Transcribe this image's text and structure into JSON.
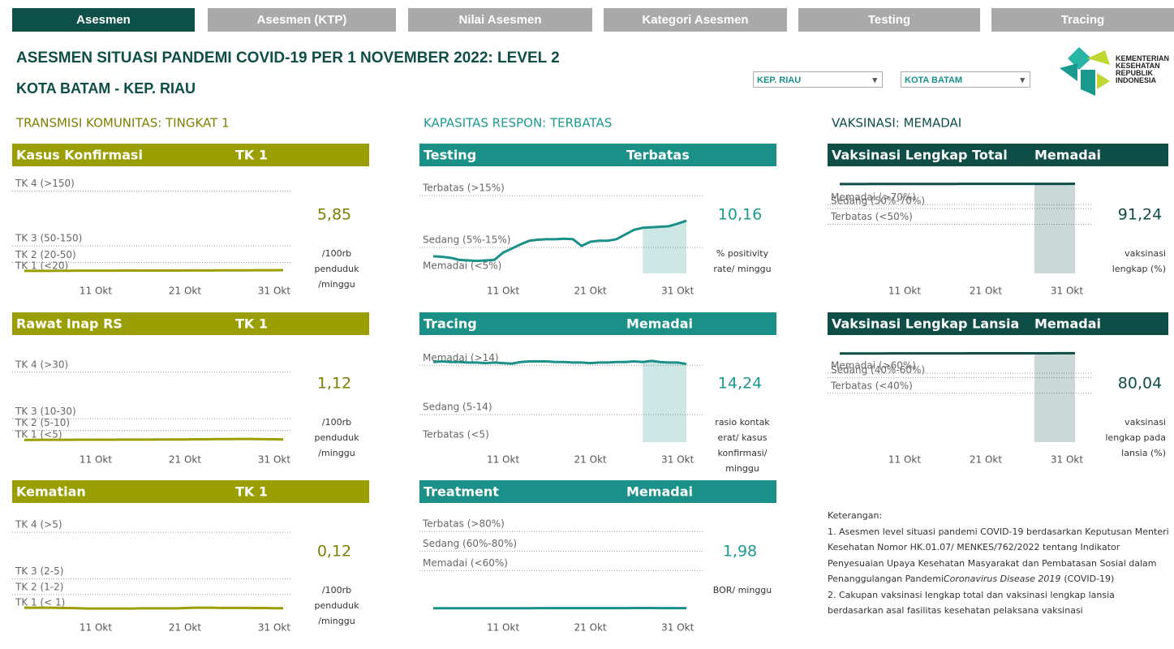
{
  "tabs": [
    "Asesmen",
    "Asesmen (KTP)",
    "Nilai Asesmen",
    "Kategori Asesmen",
    "Testing",
    "Tracing"
  ],
  "title": "ASESMEN SITUASI PANDEMI COVID-19 PER 1 NOVEMBER 2022: LEVEL 2",
  "subtitle": "KOTA BATAM - KEP. RIAU",
  "filters": [
    "KEP. RIAU",
    "KOTA BATAM"
  ],
  "logo": [
    "KEMENTERIAN",
    "KESEHATAN",
    "REPUBLIK",
    "INDONESIA"
  ],
  "sections": [
    {
      "heading": "TRANSMISI KOMUNITAS: TINGKAT 1",
      "color": "#9a9e00",
      "text_color": "#7d7f00",
      "panels": [
        {
          "name": "Kasus Konfirmasi",
          "status": "TK 1",
          "value": "5,85",
          "unit": [
            "/100rb",
            "penduduk",
            "/minggu"
          ],
          "chart": {
            "type": "line",
            "ylim": [
              0,
              170
            ],
            "xlim": [
              0,
              29
            ],
            "thresholds": [
              {
                "value": 150,
                "label": "TK 4 (>150)"
              },
              {
                "value": 50,
                "label": "TK 3 (50-150)"
              },
              {
                "value": 20,
                "label": "TK 2 (20-50)"
              },
              {
                "value": 0,
                "label": "TK 1 (<20)"
              }
            ],
            "xticks": [
              {
                "value": 8,
                "label": "11 Okt"
              },
              {
                "value": 18,
                "label": "21 Okt"
              },
              {
                "value": 28,
                "label": "31 Okt"
              }
            ],
            "values": [
              4.6,
              4.6,
              4.7,
              4.7,
              4.8,
              4.8,
              4.9,
              4.9,
              5.0,
              5.0,
              5.0,
              5.1,
              5.1,
              5.1,
              5.2,
              5.2,
              5.2,
              5.2,
              5.3,
              5.3,
              5.4,
              5.4,
              5.5,
              5.5,
              5.6,
              5.6,
              5.7,
              5.7,
              5.8,
              5.85
            ]
          }
        },
        {
          "name": "Rawat Inap RS",
          "status": "TK 1",
          "value": "1,12",
          "unit": [
            "/100rb",
            "penduduk",
            "/minggu"
          ],
          "chart": {
            "type": "line",
            "ylim": [
              0,
              40
            ],
            "xlim": [
              0,
              29
            ],
            "thresholds": [
              {
                "value": 30,
                "label": "TK 4 (>30)"
              },
              {
                "value": 10,
                "label": "TK 3 (10-30)"
              },
              {
                "value": 5,
                "label": "TK 2 (5-10)"
              },
              {
                "value": 0,
                "label": "TK 1 (<5)"
              }
            ],
            "xticks": [
              {
                "value": 8,
                "label": "11 Okt"
              },
              {
                "value": 18,
                "label": "21 Okt"
              },
              {
                "value": 28,
                "label": "31 Okt"
              }
            ],
            "values": [
              0.9,
              0.95,
              1.0,
              1.0,
              1.0,
              1.02,
              1.03,
              1.05,
              1.05,
              1.05,
              1.06,
              1.08,
              1.08,
              1.1,
              1.1,
              1.12,
              1.12,
              1.15,
              1.15,
              1.2,
              1.2,
              1.25,
              1.3,
              1.3,
              1.35,
              1.35,
              1.3,
              1.25,
              1.2,
              1.12
            ]
          }
        },
        {
          "name": "Kematian",
          "status": "TK 1",
          "value": "0,12",
          "unit": [
            "/100rb",
            "penduduk",
            "/minggu"
          ],
          "chart": {
            "type": "line",
            "ylim": [
              0,
              6
            ],
            "xlim": [
              0,
              29
            ],
            "thresholds": [
              {
                "value": 5,
                "label": "TK 4 (>5)"
              },
              {
                "value": 2,
                "label": "TK 3 (2-5)"
              },
              {
                "value": 1,
                "label": "TK 2 (1-2)"
              },
              {
                "value": 0,
                "label": "TK 1 (< 1)"
              }
            ],
            "xticks": [
              {
                "value": 8,
                "label": "11 Okt"
              },
              {
                "value": 18,
                "label": "21 Okt"
              },
              {
                "value": 28,
                "label": "31 Okt"
              }
            ],
            "values": [
              0.15,
              0.15,
              0.15,
              0.15,
              0.14,
              0.13,
              0.12,
              0.1,
              0.1,
              0.1,
              0.1,
              0.1,
              0.1,
              0.11,
              0.11,
              0.11,
              0.11,
              0.11,
              0.13,
              0.15,
              0.15,
              0.15,
              0.14,
              0.14,
              0.14,
              0.14,
              0.13,
              0.13,
              0.12,
              0.12
            ]
          }
        }
      ]
    },
    {
      "heading": "KAPASITAS RESPON: TERBATAS",
      "color": "#1a9088",
      "text_color": "#1b9a91",
      "panels": [
        {
          "name": "Testing",
          "status": "Terbatas",
          "value": "10,16",
          "unit": [
            "% positivity",
            "rate/ minggu"
          ],
          "chart": {
            "type": "line",
            "ylim": [
              0,
              18
            ],
            "xlim": [
              0,
              29
            ],
            "shade_from": 24,
            "thresholds": [
              {
                "value": 15,
                "label": "Terbatas (>15%)"
              },
              {
                "value": 5,
                "label": "Sedang (5%-15%)"
              },
              {
                "value": 0,
                "label": "Memadai (<5%)"
              }
            ],
            "xticks": [
              {
                "value": 8,
                "label": "11 Okt"
              },
              {
                "value": 18,
                "label": "21 Okt"
              },
              {
                "value": 28,
                "label": "31 Okt"
              }
            ],
            "values": [
              3.3,
              3.2,
              3.0,
              2.6,
              2.5,
              2.4,
              2.5,
              2.6,
              4.0,
              4.8,
              5.6,
              6.3,
              6.5,
              6.6,
              6.6,
              6.7,
              6.6,
              5.3,
              6.1,
              6.3,
              6.3,
              6.6,
              7.5,
              8.4,
              8.8,
              8.9,
              9.0,
              9.1,
              9.6,
              10.16
            ]
          }
        },
        {
          "name": "Tracing",
          "status": "Memadai",
          "value": "14,24",
          "unit": [
            "rasio kontak",
            "erat/ kasus",
            "konfirmasi/",
            "minggu"
          ],
          "chart": {
            "type": "line",
            "ylim": [
              0,
              17
            ],
            "xlim": [
              0,
              29
            ],
            "shade_from": 24,
            "thresholds": [
              {
                "value": 14,
                "label": "Memadai (>14)"
              },
              {
                "value": 5,
                "label": "Sedang (5-14)"
              },
              {
                "value": 0,
                "label": "Terbatas (<5)"
              }
            ],
            "xticks": [
              {
                "value": 8,
                "label": "11 Okt"
              },
              {
                "value": 18,
                "label": "21 Okt"
              },
              {
                "value": 28,
                "label": "31 Okt"
              }
            ],
            "values": [
              14.6,
              14.7,
              14.6,
              14.6,
              14.5,
              14.5,
              14.4,
              14.5,
              14.4,
              14.3,
              14.6,
              14.7,
              14.7,
              14.7,
              14.6,
              14.6,
              14.5,
              14.5,
              14.4,
              14.5,
              14.5,
              14.6,
              14.6,
              14.7,
              14.6,
              14.8,
              14.6,
              14.5,
              14.5,
              14.24
            ]
          }
        },
        {
          "name": "Treatment",
          "status": "Memadai",
          "value": "1,98",
          "unit": [
            "BOR/ minggu"
          ],
          "chart": {
            "type": "line",
            "ylim": [
              0,
              95
            ],
            "xlim": [
              0,
              29
            ],
            "thresholds": [
              {
                "value": 80,
                "label": "Terbatas (>80%)"
              },
              {
                "value": 60,
                "label": "Sedang (60%-80%)"
              },
              {
                "value": 40,
                "label": "Memadai (<60%)"
              }
            ],
            "xticks": [
              {
                "value": 8,
                "label": "11 Okt"
              },
              {
                "value": 18,
                "label": "21 Okt"
              },
              {
                "value": 28,
                "label": "31 Okt"
              }
            ],
            "values": [
              1.9,
              1.9,
              1.9,
              1.9,
              1.9,
              1.85,
              1.85,
              1.85,
              1.9,
              1.9,
              1.9,
              1.9,
              1.95,
              1.95,
              1.95,
              1.95,
              1.95,
              2.0,
              2.0,
              2.0,
              2.0,
              2.0,
              2.0,
              2.05,
              2.05,
              2.05,
              2.0,
              2.0,
              2.0,
              1.98
            ]
          }
        }
      ]
    },
    {
      "heading": "VAKSINASI: MEMADAI",
      "color": "#0e4e47",
      "text_color": "#0e4e47",
      "panels": [
        {
          "name": "Vaksinasi Lengkap Total",
          "status": "Memadai",
          "value": "91,24",
          "unit": [
            "vaksinasi",
            "lengkap (%)"
          ],
          "chart": {
            "type": "line",
            "ylim": [
              0,
              95
            ],
            "xlim": [
              0,
              29
            ],
            "shade_from": 24,
            "thresholds": [
              {
                "value": 70,
                "label": "Memadai (>70%)"
              },
              {
                "value": 66,
                "label": "Sedang (50%-70%)"
              },
              {
                "value": 50,
                "label": "Terbatas (<50%)"
              }
            ],
            "xticks": [
              {
                "value": 8,
                "label": "11 Okt"
              },
              {
                "value": 18,
                "label": "21 Okt"
              },
              {
                "value": 28,
                "label": "31 Okt"
              }
            ],
            "values": [
              91.0,
              91.0,
              91.01,
              91.02,
              91.03,
              91.04,
              91.05,
              91.06,
              91.07,
              91.08,
              91.09,
              91.1,
              91.1,
              91.11,
              91.12,
              91.13,
              91.14,
              91.15,
              91.16,
              91.17,
              91.18,
              91.18,
              91.19,
              91.2,
              91.21,
              91.21,
              91.22,
              91.23,
              91.23,
              91.24
            ]
          }
        },
        {
          "name": "Vaksinasi Lengkap Lansia",
          "status": "Memadai",
          "value": "80,04",
          "unit": [
            "vaksinasi",
            "lengkap pada",
            "lansia (%)"
          ],
          "chart": {
            "type": "line",
            "ylim": [
              0,
              84
            ],
            "xlim": [
              0,
              29
            ],
            "shade_from": 24,
            "thresholds": [
              {
                "value": 62,
                "label": "Memadai (>60%)"
              },
              {
                "value": 58,
                "label": "Sedang (40%-60%)"
              },
              {
                "value": 44,
                "label": "Terbatas (<40%)"
              }
            ],
            "xticks": [
              {
                "value": 8,
                "label": "11 Okt"
              },
              {
                "value": 18,
                "label": "21 Okt"
              },
              {
                "value": 28,
                "label": "31 Okt"
              }
            ],
            "values": [
              79.8,
              79.8,
              79.81,
              79.82,
              79.83,
              79.84,
              79.85,
              79.86,
              79.87,
              79.88,
              79.89,
              79.9,
              79.9,
              79.91,
              79.92,
              79.93,
              79.94,
              79.95,
              79.96,
              79.97,
              79.98,
              79.98,
              79.99,
              80.0,
              80.01,
              80.01,
              80.02,
              80.03,
              80.03,
              80.04
            ]
          }
        }
      ]
    }
  ],
  "notes": {
    "heading": "Keterangan:",
    "item1": "1. Asesmen level situasi pandemi COVID-19 berdasarkan Keputusan Menteri Kesehatan Nomor HK.01.07/ MENKES/762/2022 tentang Indikator Penyesuaian Upaya Kesehatan Masyarakat dan Pembatasan Sosial dalam Penanggulangan Pandemi",
    "item1_italic": "Coronavirus Disease 2019",
    "item1_tail": "(COVID-19)",
    "item2": "2. Cakupan vaksinasi lengkap total dan vaksinasi lengkap lansia berdasarkan asal fasilitas kesehatan pelaksana vaksinasi"
  }
}
